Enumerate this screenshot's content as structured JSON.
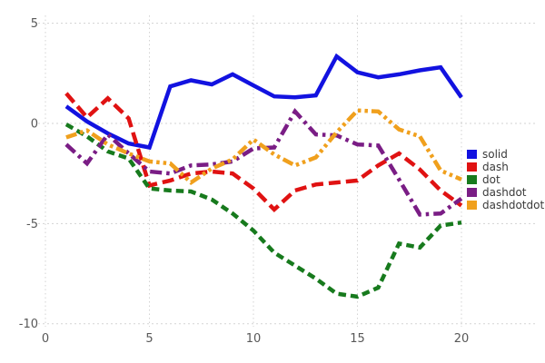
{
  "chart_data": {
    "type": "line",
    "title": "",
    "xlabel": "",
    "ylabel": "",
    "grid": true,
    "legend_position": "right",
    "x_ticks": [
      0,
      5,
      10,
      15,
      20
    ],
    "y_ticks": [
      5,
      0,
      -5,
      -10
    ],
    "xlim": [
      -0.35,
      23.7
    ],
    "ylim": [
      -10.15,
      5.4
    ],
    "x": [
      1,
      2,
      3,
      4,
      5,
      6,
      7,
      8,
      9,
      10,
      11,
      12,
      13,
      14,
      15,
      16,
      17,
      18,
      19,
      20
    ],
    "series": [
      {
        "name": "solid",
        "color": "#1212e0",
        "dash": "solid",
        "values": [
          0.85,
          0.1,
          -0.5,
          -1.0,
          -1.2,
          1.85,
          2.15,
          1.95,
          2.45,
          1.9,
          1.35,
          1.3,
          1.4,
          3.35,
          2.55,
          2.3,
          2.45,
          2.65,
          2.8,
          1.3
        ]
      },
      {
        "name": "dash",
        "color": "#e01212",
        "dash": "dash",
        "values": [
          1.5,
          0.3,
          1.25,
          0.25,
          -3.1,
          -2.85,
          -2.5,
          -2.4,
          -2.5,
          -3.25,
          -4.3,
          -3.35,
          -3.05,
          -2.95,
          -2.85,
          -2.1,
          -1.5,
          -2.3,
          -3.35,
          -4.1
        ]
      },
      {
        "name": "dot",
        "color": "#177a1d",
        "dash": "dot",
        "values": [
          -0.05,
          -0.65,
          -1.4,
          -1.75,
          -3.25,
          -3.35,
          -3.4,
          -3.8,
          -4.5,
          -5.35,
          -6.45,
          -7.1,
          -7.75,
          -8.5,
          -8.65,
          -8.2,
          -6.0,
          -6.2,
          -5.1,
          -4.95
        ]
      },
      {
        "name": "dashdot",
        "color": "#7a1d85",
        "dash": "dashdot",
        "values": [
          -1.05,
          -2.0,
          -0.55,
          -1.5,
          -2.4,
          -2.5,
          -2.1,
          -2.05,
          -1.9,
          -1.25,
          -1.2,
          0.6,
          -0.55,
          -0.6,
          -1.05,
          -1.1,
          -2.8,
          -4.55,
          -4.5,
          -3.75
        ]
      },
      {
        "name": "dashdotdot",
        "color": "#f0a01d",
        "dash": "dashdotdot",
        "values": [
          -0.7,
          -0.35,
          -1.05,
          -1.5,
          -1.9,
          -2.0,
          -2.95,
          -2.25,
          -1.8,
          -0.8,
          -1.55,
          -2.1,
          -1.7,
          -0.45,
          0.65,
          0.6,
          -0.3,
          -0.65,
          -2.35,
          -2.8
        ]
      }
    ],
    "x_tick_labels": [
      "0",
      "5",
      "10",
      "15",
      "20"
    ],
    "y_tick_labels": [
      "5",
      "0",
      "-5",
      "-10"
    ],
    "gridline_color": "#d3d3d3",
    "tick_label_color": "#585858"
  }
}
